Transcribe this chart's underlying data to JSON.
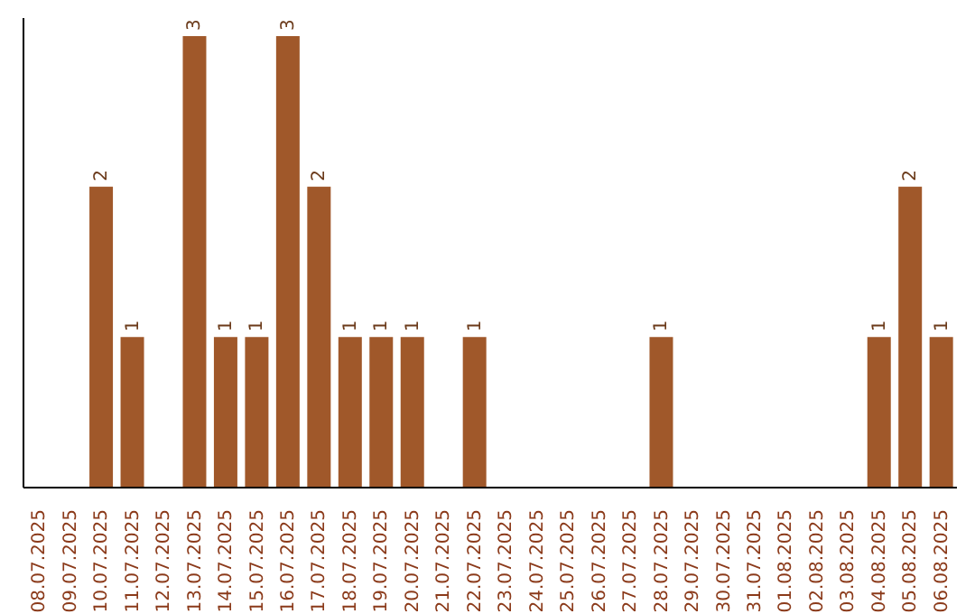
{
  "chart_data": {
    "type": "bar",
    "categories": [
      "08.07.2025",
      "09.07.2025",
      "10.07.2025",
      "11.07.2025",
      "12.07.2025",
      "13.07.2025",
      "14.07.2025",
      "15.07.2025",
      "16.07.2025",
      "17.07.2025",
      "18.07.2025",
      "19.07.2025",
      "20.07.2025",
      "21.07.2025",
      "22.07.2025",
      "23.07.2025",
      "24.07.2025",
      "25.07.2025",
      "26.07.2025",
      "27.07.2025",
      "28.07.2025",
      "29.07.2025",
      "30.07.2025",
      "31.07.2025",
      "01.08.2025",
      "02.08.2025",
      "03.08.2025",
      "04.08.2025",
      "05.08.2025",
      "06.08.2025"
    ],
    "values": [
      0,
      0,
      2,
      1,
      0,
      3,
      1,
      1,
      3,
      2,
      1,
      1,
      1,
      0,
      1,
      0,
      0,
      0,
      0,
      0,
      1,
      0,
      0,
      0,
      0,
      0,
      0,
      1,
      2,
      1
    ],
    "value_labels": [
      null,
      null,
      "2",
      "1",
      null,
      "3",
      "1",
      "1",
      "3",
      "2",
      "1",
      "1",
      "1",
      null,
      "1",
      null,
      null,
      null,
      null,
      null,
      "1",
      null,
      null,
      null,
      null,
      null,
      null,
      "1",
      "2",
      "1"
    ],
    "color": "#a0582a",
    "grid": false,
    "tick_labels": "x"
  }
}
